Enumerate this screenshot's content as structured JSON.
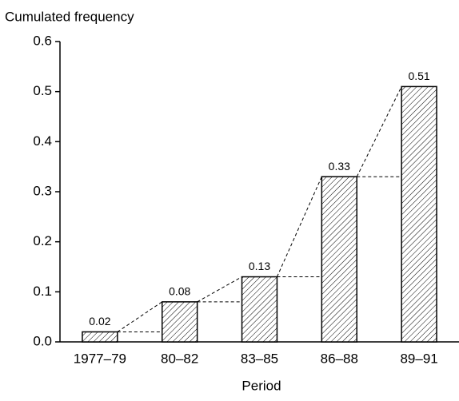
{
  "chart_data": {
    "type": "bar",
    "y_label": "Cumulated frequency",
    "x_label": "Period",
    "categories": [
      "1977–79",
      "80–82",
      "83–85",
      "86–88",
      "89–91"
    ],
    "values": [
      0.02,
      0.08,
      0.13,
      0.33,
      0.51
    ],
    "ylim": [
      0,
      0.6
    ],
    "yticks": [
      {
        "value": 0,
        "label": "0.0"
      },
      0.1,
      0.2,
      0.3,
      0.4,
      0.5,
      0.6
    ],
    "bar_fill": "hatched",
    "color": "#000000"
  }
}
